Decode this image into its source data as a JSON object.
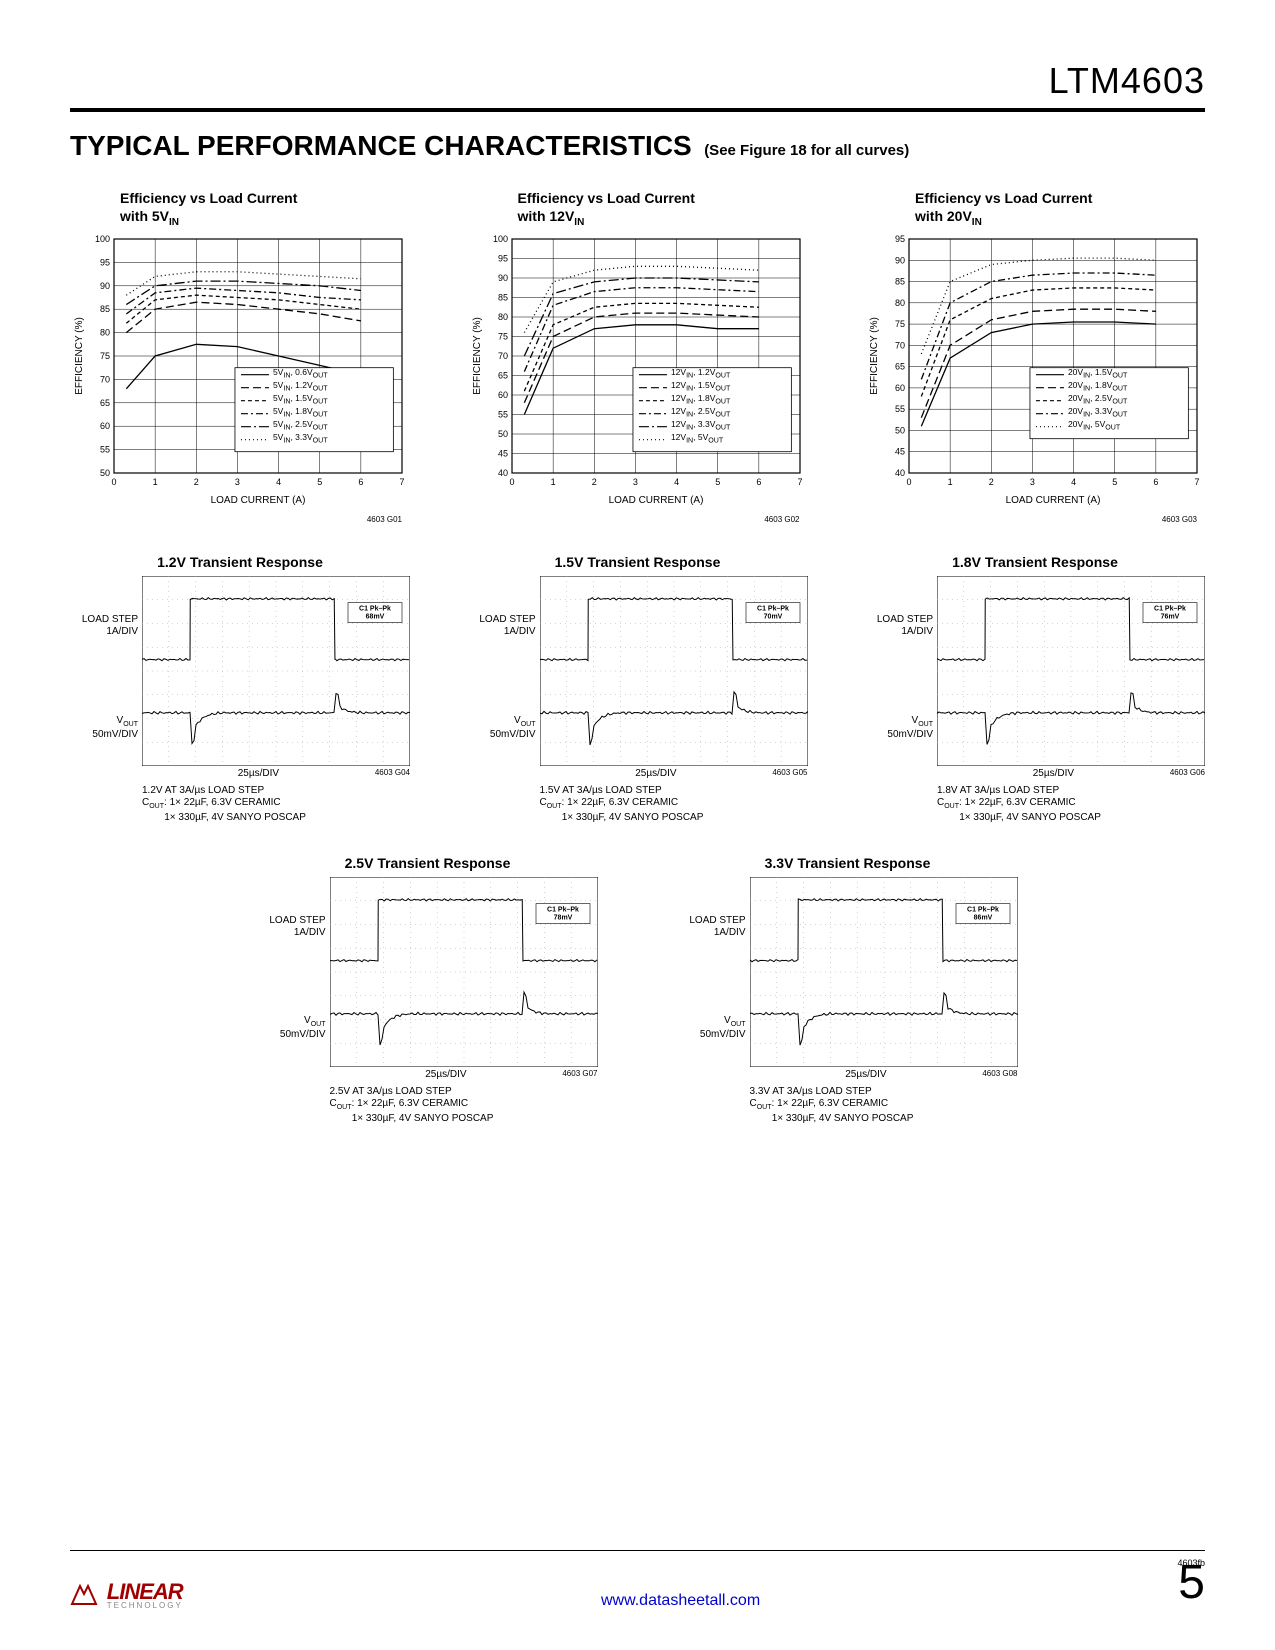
{
  "part_number": "LTM4603",
  "section_title": "TYPICAL PERFORMANCE CHARACTERISTICS",
  "section_subtitle": "(See Figure 18 for all curves)",
  "doc_rev": "4603fb",
  "page_number": "5",
  "url": "www.datasheetall.com",
  "logo_main": "LINEAR",
  "logo_sub": "TECHNOLOGY",
  "eff_charts": [
    {
      "title_html": "Efficiency vs Load Current<br>with 5V<sub>IN</sub>",
      "xlabel": "LOAD CURRENT (A)",
      "ylabel": "EFFICIENCY (%)",
      "xlim": [
        0,
        7
      ],
      "xtick_step": 1,
      "ylim": [
        50,
        100
      ],
      "ytick_step": 5,
      "fig_id": "4603 G01",
      "legend": [
        {
          "label": "5V<sub>IN</sub>, 0.6V<sub>OUT</sub>",
          "dash": "solid"
        },
        {
          "label": "5V<sub>IN</sub>, 1.2V<sub>OUT</sub>",
          "dash": "long"
        },
        {
          "label": "5V<sub>IN</sub>, 1.5V<sub>OUT</sub>",
          "dash": "short"
        },
        {
          "label": "5V<sub>IN</sub>, 1.8V<sub>OUT</sub>",
          "dash": "dashdot"
        },
        {
          "label": "5V<sub>IN</sub>, 2.5V<sub>OUT</sub>",
          "dash": "longdashdot"
        },
        {
          "label": "5V<sub>IN</sub>, 3.3V<sub>OUT</sub>",
          "dash": "dot"
        }
      ],
      "series": [
        {
          "dash": "solid",
          "pts": [
            [
              0.3,
              68
            ],
            [
              1,
              75
            ],
            [
              2,
              77.5
            ],
            [
              3,
              77
            ],
            [
              4,
              75
            ],
            [
              5,
              73
            ],
            [
              6,
              71
            ]
          ]
        },
        {
          "dash": "long",
          "pts": [
            [
              0.3,
              80
            ],
            [
              1,
              85
            ],
            [
              2,
              86.5
            ],
            [
              3,
              86
            ],
            [
              4,
              85
            ],
            [
              5,
              84
            ],
            [
              6,
              82.5
            ]
          ]
        },
        {
          "dash": "short",
          "pts": [
            [
              0.3,
              82
            ],
            [
              1,
              87
            ],
            [
              2,
              88
            ],
            [
              3,
              87.5
            ],
            [
              4,
              87
            ],
            [
              5,
              86
            ],
            [
              6,
              85
            ]
          ]
        },
        {
          "dash": "dashdot",
          "pts": [
            [
              0.3,
              84
            ],
            [
              1,
              88.5
            ],
            [
              2,
              89.5
            ],
            [
              3,
              89
            ],
            [
              4,
              88.5
            ],
            [
              5,
              87.5
            ],
            [
              6,
              87
            ]
          ]
        },
        {
          "dash": "longdashdot",
          "pts": [
            [
              0.3,
              86
            ],
            [
              1,
              90
            ],
            [
              2,
              91
            ],
            [
              3,
              91
            ],
            [
              4,
              90.5
            ],
            [
              5,
              90
            ],
            [
              6,
              89
            ]
          ]
        },
        {
          "dash": "dot",
          "pts": [
            [
              0.3,
              88
            ],
            [
              1,
              92
            ],
            [
              2,
              93
            ],
            [
              3,
              93
            ],
            [
              4,
              92.5
            ],
            [
              5,
              92
            ],
            [
              6,
              91.5
            ]
          ]
        }
      ]
    },
    {
      "title_html": "Efficiency vs Load Current<br>with 12V<sub>IN</sub>",
      "xlabel": "LOAD CURRENT (A)",
      "ylabel": "EFFICIENCY (%)",
      "xlim": [
        0,
        7
      ],
      "xtick_step": 1,
      "ylim": [
        40,
        100
      ],
      "ytick_step": 5,
      "fig_id": "4603 G02",
      "legend": [
        {
          "label": "12V<sub>IN</sub>, 1.2V<sub>OUT</sub>",
          "dash": "solid"
        },
        {
          "label": "12V<sub>IN</sub>, 1.5V<sub>OUT</sub>",
          "dash": "long"
        },
        {
          "label": "12V<sub>IN</sub>, 1.8V<sub>OUT</sub>",
          "dash": "short"
        },
        {
          "label": "12V<sub>IN</sub>, 2.5V<sub>OUT</sub>",
          "dash": "dashdot"
        },
        {
          "label": "12V<sub>IN</sub>, 3.3V<sub>OUT</sub>",
          "dash": "longdashdot"
        },
        {
          "label": "12V<sub>IN</sub>, 5V<sub>OUT</sub>",
          "dash": "dot"
        }
      ],
      "series": [
        {
          "dash": "solid",
          "pts": [
            [
              0.3,
              55
            ],
            [
              1,
              72
            ],
            [
              2,
              77
            ],
            [
              3,
              78
            ],
            [
              4,
              78
            ],
            [
              5,
              77
            ],
            [
              6,
              77
            ]
          ]
        },
        {
          "dash": "long",
          "pts": [
            [
              0.3,
              58
            ],
            [
              1,
              75
            ],
            [
              2,
              80
            ],
            [
              3,
              81
            ],
            [
              4,
              81
            ],
            [
              5,
              80.5
            ],
            [
              6,
              80
            ]
          ]
        },
        {
          "dash": "short",
          "pts": [
            [
              0.3,
              61
            ],
            [
              1,
              78
            ],
            [
              2,
              82.5
            ],
            [
              3,
              83.5
            ],
            [
              4,
              83.5
            ],
            [
              5,
              83
            ],
            [
              6,
              82.5
            ]
          ]
        },
        {
          "dash": "dashdot",
          "pts": [
            [
              0.3,
              66
            ],
            [
              1,
              83
            ],
            [
              2,
              86.5
            ],
            [
              3,
              87.5
            ],
            [
              4,
              87.5
            ],
            [
              5,
              87
            ],
            [
              6,
              86.5
            ]
          ]
        },
        {
          "dash": "longdashdot",
          "pts": [
            [
              0.3,
              70
            ],
            [
              1,
              86
            ],
            [
              2,
              89
            ],
            [
              3,
              90
            ],
            [
              4,
              90
            ],
            [
              5,
              89.5
            ],
            [
              6,
              89
            ]
          ]
        },
        {
          "dash": "dot",
          "pts": [
            [
              0.3,
              76
            ],
            [
              1,
              89
            ],
            [
              2,
              92
            ],
            [
              3,
              93
            ],
            [
              4,
              93
            ],
            [
              5,
              92.5
            ],
            [
              6,
              92
            ]
          ]
        }
      ]
    },
    {
      "title_html": "Efficiency vs Load Current<br>with 20V<sub>IN</sub>",
      "xlabel": "LOAD CURRENT (A)",
      "ylabel": "EFFICIENCY (%)",
      "xlim": [
        0,
        7
      ],
      "xtick_step": 1,
      "ylim": [
        40,
        95
      ],
      "ytick_step": 5,
      "fig_id": "4603 G03",
      "legend": [
        {
          "label": "20V<sub>IN</sub>, 1.5V<sub>OUT</sub>",
          "dash": "solid"
        },
        {
          "label": "20V<sub>IN</sub>, 1.8V<sub>OUT</sub>",
          "dash": "long"
        },
        {
          "label": "20V<sub>IN</sub>, 2.5V<sub>OUT</sub>",
          "dash": "short"
        },
        {
          "label": "20V<sub>IN</sub>, 3.3V<sub>OUT</sub>",
          "dash": "dashdot"
        },
        {
          "label": "20V<sub>IN</sub>, 5V<sub>OUT</sub>",
          "dash": "dot"
        }
      ],
      "series": [
        {
          "dash": "solid",
          "pts": [
            [
              0.3,
              51
            ],
            [
              1,
              67
            ],
            [
              2,
              73
            ],
            [
              3,
              75
            ],
            [
              4,
              75.5
            ],
            [
              5,
              75.5
            ],
            [
              6,
              75
            ]
          ]
        },
        {
          "dash": "long",
          "pts": [
            [
              0.3,
              53
            ],
            [
              1,
              70
            ],
            [
              2,
              76
            ],
            [
              3,
              78
            ],
            [
              4,
              78.5
            ],
            [
              5,
              78.5
            ],
            [
              6,
              78
            ]
          ]
        },
        {
          "dash": "short",
          "pts": [
            [
              0.3,
              58
            ],
            [
              1,
              76
            ],
            [
              2,
              81
            ],
            [
              3,
              83
            ],
            [
              4,
              83.5
            ],
            [
              5,
              83.5
            ],
            [
              6,
              83
            ]
          ]
        },
        {
          "dash": "dashdot",
          "pts": [
            [
              0.3,
              62
            ],
            [
              1,
              80
            ],
            [
              2,
              85
            ],
            [
              3,
              86.5
            ],
            [
              4,
              87
            ],
            [
              5,
              87
            ],
            [
              6,
              86.5
            ]
          ]
        },
        {
          "dash": "dot",
          "pts": [
            [
              0.3,
              68
            ],
            [
              1,
              85
            ],
            [
              2,
              89
            ],
            [
              3,
              90
            ],
            [
              4,
              90.5
            ],
            [
              5,
              90.5
            ],
            [
              6,
              90
            ]
          ]
        }
      ]
    }
  ],
  "scopes_row1": [
    {
      "title": "1.2V Transient Response",
      "pkpk": "C1 Pk–Pk\n68mV",
      "xaxis": "25µs/DIV",
      "fig_id": "4603 G04",
      "note_html": "1.2V AT 3A/µs LOAD STEP<br>C<sub>OUT</sub>: 1× 22µF, 6.3V CERAMIC<br>&nbsp;&nbsp;&nbsp;&nbsp;&nbsp;&nbsp;&nbsp;&nbsp;1× 330µF, 4V SANYO POSCAP"
    },
    {
      "title": "1.5V Transient Response",
      "pkpk": "C1 Pk–Pk\n70mV",
      "xaxis": "25µs/DIV",
      "fig_id": "4603 G05",
      "note_html": "1.5V AT 3A/µs LOAD STEP<br>C<sub>OUT</sub>: 1× 22µF, 6.3V CERAMIC<br>&nbsp;&nbsp;&nbsp;&nbsp;&nbsp;&nbsp;&nbsp;&nbsp;1× 330µF, 4V SANYO POSCAP"
    },
    {
      "title": "1.8V Transient Response",
      "pkpk": "C1 Pk–Pk\n76mV",
      "xaxis": "25µs/DIV",
      "fig_id": "4603 G06",
      "note_html": "1.8V AT 3A/µs LOAD STEP<br>C<sub>OUT</sub>: 1× 22µF, 6.3V CERAMIC<br>&nbsp;&nbsp;&nbsp;&nbsp;&nbsp;&nbsp;&nbsp;&nbsp;1× 330µF, 4V SANYO POSCAP"
    }
  ],
  "scopes_row2": [
    {
      "title": "2.5V Transient Response",
      "pkpk": "C1 Pk–Pk\n78mV",
      "xaxis": "25µs/DIV",
      "fig_id": "4603 G07",
      "note_html": "2.5V AT 3A/µs LOAD STEP<br>C<sub>OUT</sub>: 1× 22µF, 6.3V CERAMIC<br>&nbsp;&nbsp;&nbsp;&nbsp;&nbsp;&nbsp;&nbsp;&nbsp;1× 330µF, 4V SANYO POSCAP"
    },
    {
      "title": "3.3V Transient Response",
      "pkpk": "C1 Pk–Pk\n86mV",
      "xaxis": "25µs/DIV",
      "fig_id": "4603 G08",
      "note_html": "3.3V AT 3A/µs LOAD STEP<br>C<sub>OUT</sub>: 1× 22µF, 6.3V CERAMIC<br>&nbsp;&nbsp;&nbsp;&nbsp;&nbsp;&nbsp;&nbsp;&nbsp;1× 330µF, 4V SANYO POSCAP"
    }
  ],
  "scope_ylabels": {
    "top_html": "LOAD STEP<br>1A/DIV",
    "bot_html": "V<sub>OUT</sub><br>50mV/DIV"
  },
  "colors": {
    "line": "#000000",
    "grid": "#000000",
    "dotgrid": "#777777",
    "url": "#0000cc",
    "logo": "#a00000"
  }
}
